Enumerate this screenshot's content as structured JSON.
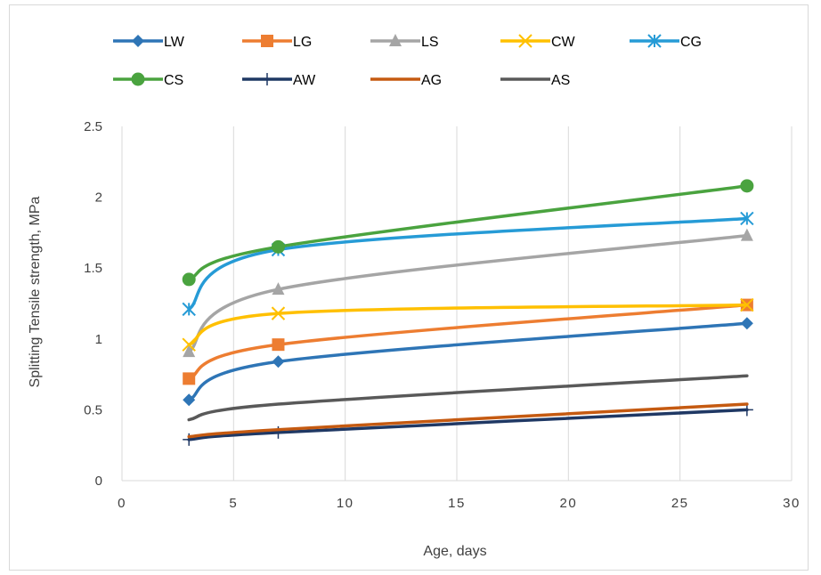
{
  "chart_data": {
    "type": "line",
    "xlabel": "Age, days",
    "ylabel": "Splitting Tensile strength, MPa",
    "xlim": [
      0,
      30
    ],
    "ylim": [
      0,
      2.5
    ],
    "x_ticks": [
      0,
      5,
      10,
      15,
      20,
      25,
      30
    ],
    "y_ticks": [
      0,
      0.5,
      1,
      1.5,
      2,
      2.5
    ],
    "y_tick_labels": [
      "0",
      "0.5",
      "1",
      "1.5",
      "2",
      "2.5"
    ],
    "grid": "vertical",
    "legend_position": "top",
    "x": [
      3,
      7,
      28
    ],
    "series": [
      {
        "name": "LW",
        "values": [
          0.57,
          0.84,
          1.11
        ],
        "color": "#2e75b6",
        "marker": "diamond"
      },
      {
        "name": "LG",
        "values": [
          0.72,
          0.96,
          1.24
        ],
        "color": "#ed7d31",
        "marker": "square"
      },
      {
        "name": "LS",
        "values": [
          0.91,
          1.35,
          1.73
        ],
        "color": "#a5a5a5",
        "marker": "triangle"
      },
      {
        "name": "CW",
        "values": [
          0.96,
          1.18,
          1.24
        ],
        "color": "#ffc000",
        "marker": "x"
      },
      {
        "name": "CG",
        "values": [
          1.21,
          1.63,
          1.85
        ],
        "color": "#269bd6",
        "marker": "star"
      },
      {
        "name": "CS",
        "values": [
          1.42,
          1.65,
          2.08
        ],
        "color": "#4aa33f",
        "marker": "circle"
      },
      {
        "name": "AW",
        "values": [
          0.29,
          0.34,
          0.5
        ],
        "color": "#1f3864",
        "marker": "plus"
      },
      {
        "name": "AG",
        "values": [
          0.31,
          0.36,
          0.54
        ],
        "color": "#c55a11",
        "marker": "none"
      },
      {
        "name": "AS",
        "values": [
          0.43,
          0.54,
          0.74
        ],
        "color": "#595959",
        "marker": "none"
      }
    ]
  }
}
